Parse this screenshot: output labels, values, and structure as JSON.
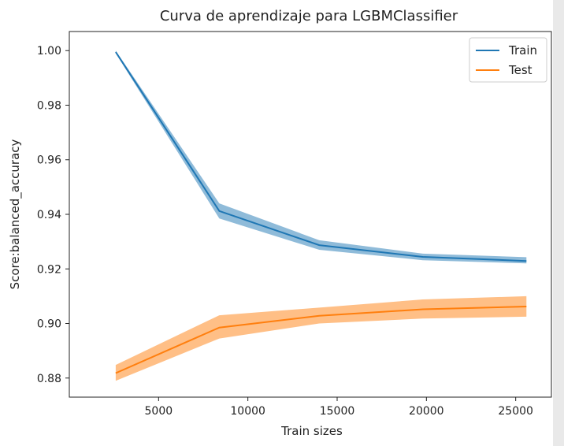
{
  "chart_data": {
    "type": "line",
    "title": "Curva de aprendizaje para LGBMClassifier",
    "xlabel": "Train sizes",
    "ylabel": "Score:balanced_accuracy",
    "x": [
      2600,
      8400,
      14000,
      19800,
      25600
    ],
    "xlim": [
      0,
      27000
    ],
    "ylim": [
      0.873,
      1.007
    ],
    "xticks": [
      5000,
      10000,
      15000,
      20000,
      25000
    ],
    "yticks": [
      0.88,
      0.9,
      0.92,
      0.94,
      0.96,
      0.98,
      1.0
    ],
    "ytick_labels": [
      "0.88",
      "0.90",
      "0.92",
      "0.94",
      "0.96",
      "0.98",
      "1.00"
    ],
    "grid": false,
    "legend_position": "top-right",
    "series": [
      {
        "name": "Train",
        "color": "#1f77b4",
        "band_color": "#1f77b4",
        "values": [
          0.9995,
          0.9412,
          0.9287,
          0.9244,
          0.9229
        ],
        "lower": [
          0.999,
          0.9385,
          0.927,
          0.9232,
          0.922
        ],
        "upper": [
          1.0,
          0.944,
          0.9305,
          0.9256,
          0.9243
        ]
      },
      {
        "name": "Test",
        "color": "#ff7f0e",
        "band_color": "#ff7f0e",
        "values": [
          0.8818,
          0.8985,
          0.9028,
          0.9052,
          0.9062
        ],
        "lower": [
          0.879,
          0.8945,
          0.9,
          0.9018,
          0.9025
        ],
        "upper": [
          0.8848,
          0.903,
          0.9058,
          0.9088,
          0.91
        ]
      }
    ]
  }
}
